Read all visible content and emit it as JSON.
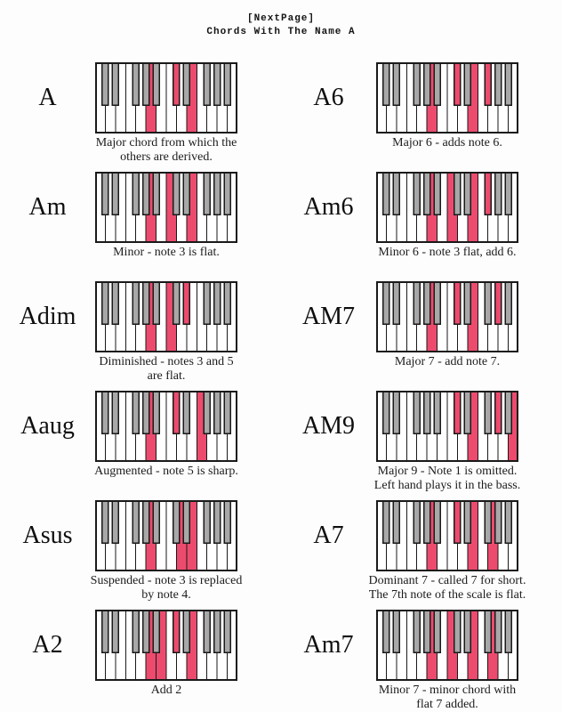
{
  "page": {
    "header_line1": "[NextPage]",
    "header_line2": "Chords With The Name A"
  },
  "keyboard": {
    "white_key_count": 14,
    "white_note_names": [
      "C",
      "D",
      "E",
      "F",
      "G",
      "A",
      "B",
      "C",
      "D",
      "E",
      "F",
      "G",
      "A",
      "B"
    ],
    "black_key_positions": [
      0,
      1,
      3,
      4,
      5,
      7,
      8,
      10,
      11,
      12
    ],
    "black_note_names": [
      "C#",
      "D#",
      "F#",
      "G#",
      "A#",
      "C#",
      "D#",
      "F#",
      "G#",
      "A#"
    ],
    "colors": {
      "highlight": "#ec4b6e",
      "white_key": "#ffffff",
      "black_key": "#a8a8a8",
      "outline": "#1a1a1a"
    }
  },
  "chords": [
    {
      "name": "A",
      "caption_lines": [
        "Major chord from which the",
        "others are derived."
      ],
      "highlighted_notes": [
        "A",
        "C#",
        "E"
      ],
      "white_highlights": [
        5,
        9
      ],
      "black_highlights": [
        5
      ]
    },
    {
      "name": "A6",
      "caption_lines": [
        "Major 6 - adds note 6."
      ],
      "highlighted_notes": [
        "A",
        "C#",
        "E",
        "F#"
      ],
      "white_highlights": [
        5,
        9
      ],
      "black_highlights": [
        5,
        7
      ]
    },
    {
      "name": "Am",
      "caption_lines": [
        "Minor - note 3 is flat."
      ],
      "highlighted_notes": [
        "A",
        "C",
        "E"
      ],
      "white_highlights": [
        5,
        7,
        9
      ],
      "black_highlights": []
    },
    {
      "name": "Am6",
      "caption_lines": [
        "Minor 6 - note 3 flat, add 6."
      ],
      "highlighted_notes": [
        "A",
        "C",
        "E",
        "F#"
      ],
      "white_highlights": [
        5,
        7,
        9
      ],
      "black_highlights": [
        7
      ]
    },
    {
      "name": "Adim",
      "caption_lines": [
        "Diminished - notes 3 and 5",
        "are flat."
      ],
      "highlighted_notes": [
        "A",
        "C",
        "Eb"
      ],
      "white_highlights": [
        5,
        7
      ],
      "black_highlights": [
        6
      ]
    },
    {
      "name": "AM7",
      "caption_lines": [
        "Major 7 - add note 7."
      ],
      "highlighted_notes": [
        "A",
        "C#",
        "E",
        "G#"
      ],
      "white_highlights": [
        5,
        9
      ],
      "black_highlights": [
        5,
        8
      ]
    },
    {
      "name": "Aaug",
      "caption_lines": [
        "Augmented - note 5 is sharp."
      ],
      "highlighted_notes": [
        "A",
        "C#",
        "E#"
      ],
      "white_highlights": [
        5,
        10
      ],
      "black_highlights": [
        5
      ]
    },
    {
      "name": "AM9",
      "caption_lines": [
        "Major 9 - Note 1 is omitted.",
        "Left hand plays it in the bass."
      ],
      "highlighted_notes": [
        "C#",
        "E",
        "G#",
        "B"
      ],
      "white_highlights": [
        9,
        13
      ],
      "black_highlights": [
        5,
        8
      ]
    },
    {
      "name": "Asus",
      "caption_lines": [
        "Suspended - note 3 is replaced",
        "by note 4."
      ],
      "highlighted_notes": [
        "A",
        "D",
        "E"
      ],
      "white_highlights": [
        5,
        8,
        9
      ],
      "black_highlights": []
    },
    {
      "name": "A7",
      "caption_lines": [
        "Dominant 7 - called 7 for short.",
        "The 7th note of the scale is flat."
      ],
      "highlighted_notes": [
        "A",
        "C#",
        "E",
        "G"
      ],
      "white_highlights": [
        5,
        9,
        11
      ],
      "black_highlights": [
        5
      ]
    },
    {
      "name": "A2",
      "caption_lines": [
        "Add 2"
      ],
      "highlighted_notes": [
        "A",
        "B",
        "C#",
        "E"
      ],
      "white_highlights": [
        5,
        6,
        9
      ],
      "black_highlights": [
        5
      ]
    },
    {
      "name": "Am7",
      "caption_lines": [
        "Minor 7 - minor chord with",
        "flat 7 added."
      ],
      "highlighted_notes": [
        "A",
        "C",
        "E",
        "G"
      ],
      "white_highlights": [
        5,
        7,
        9,
        11
      ],
      "black_highlights": []
    }
  ]
}
